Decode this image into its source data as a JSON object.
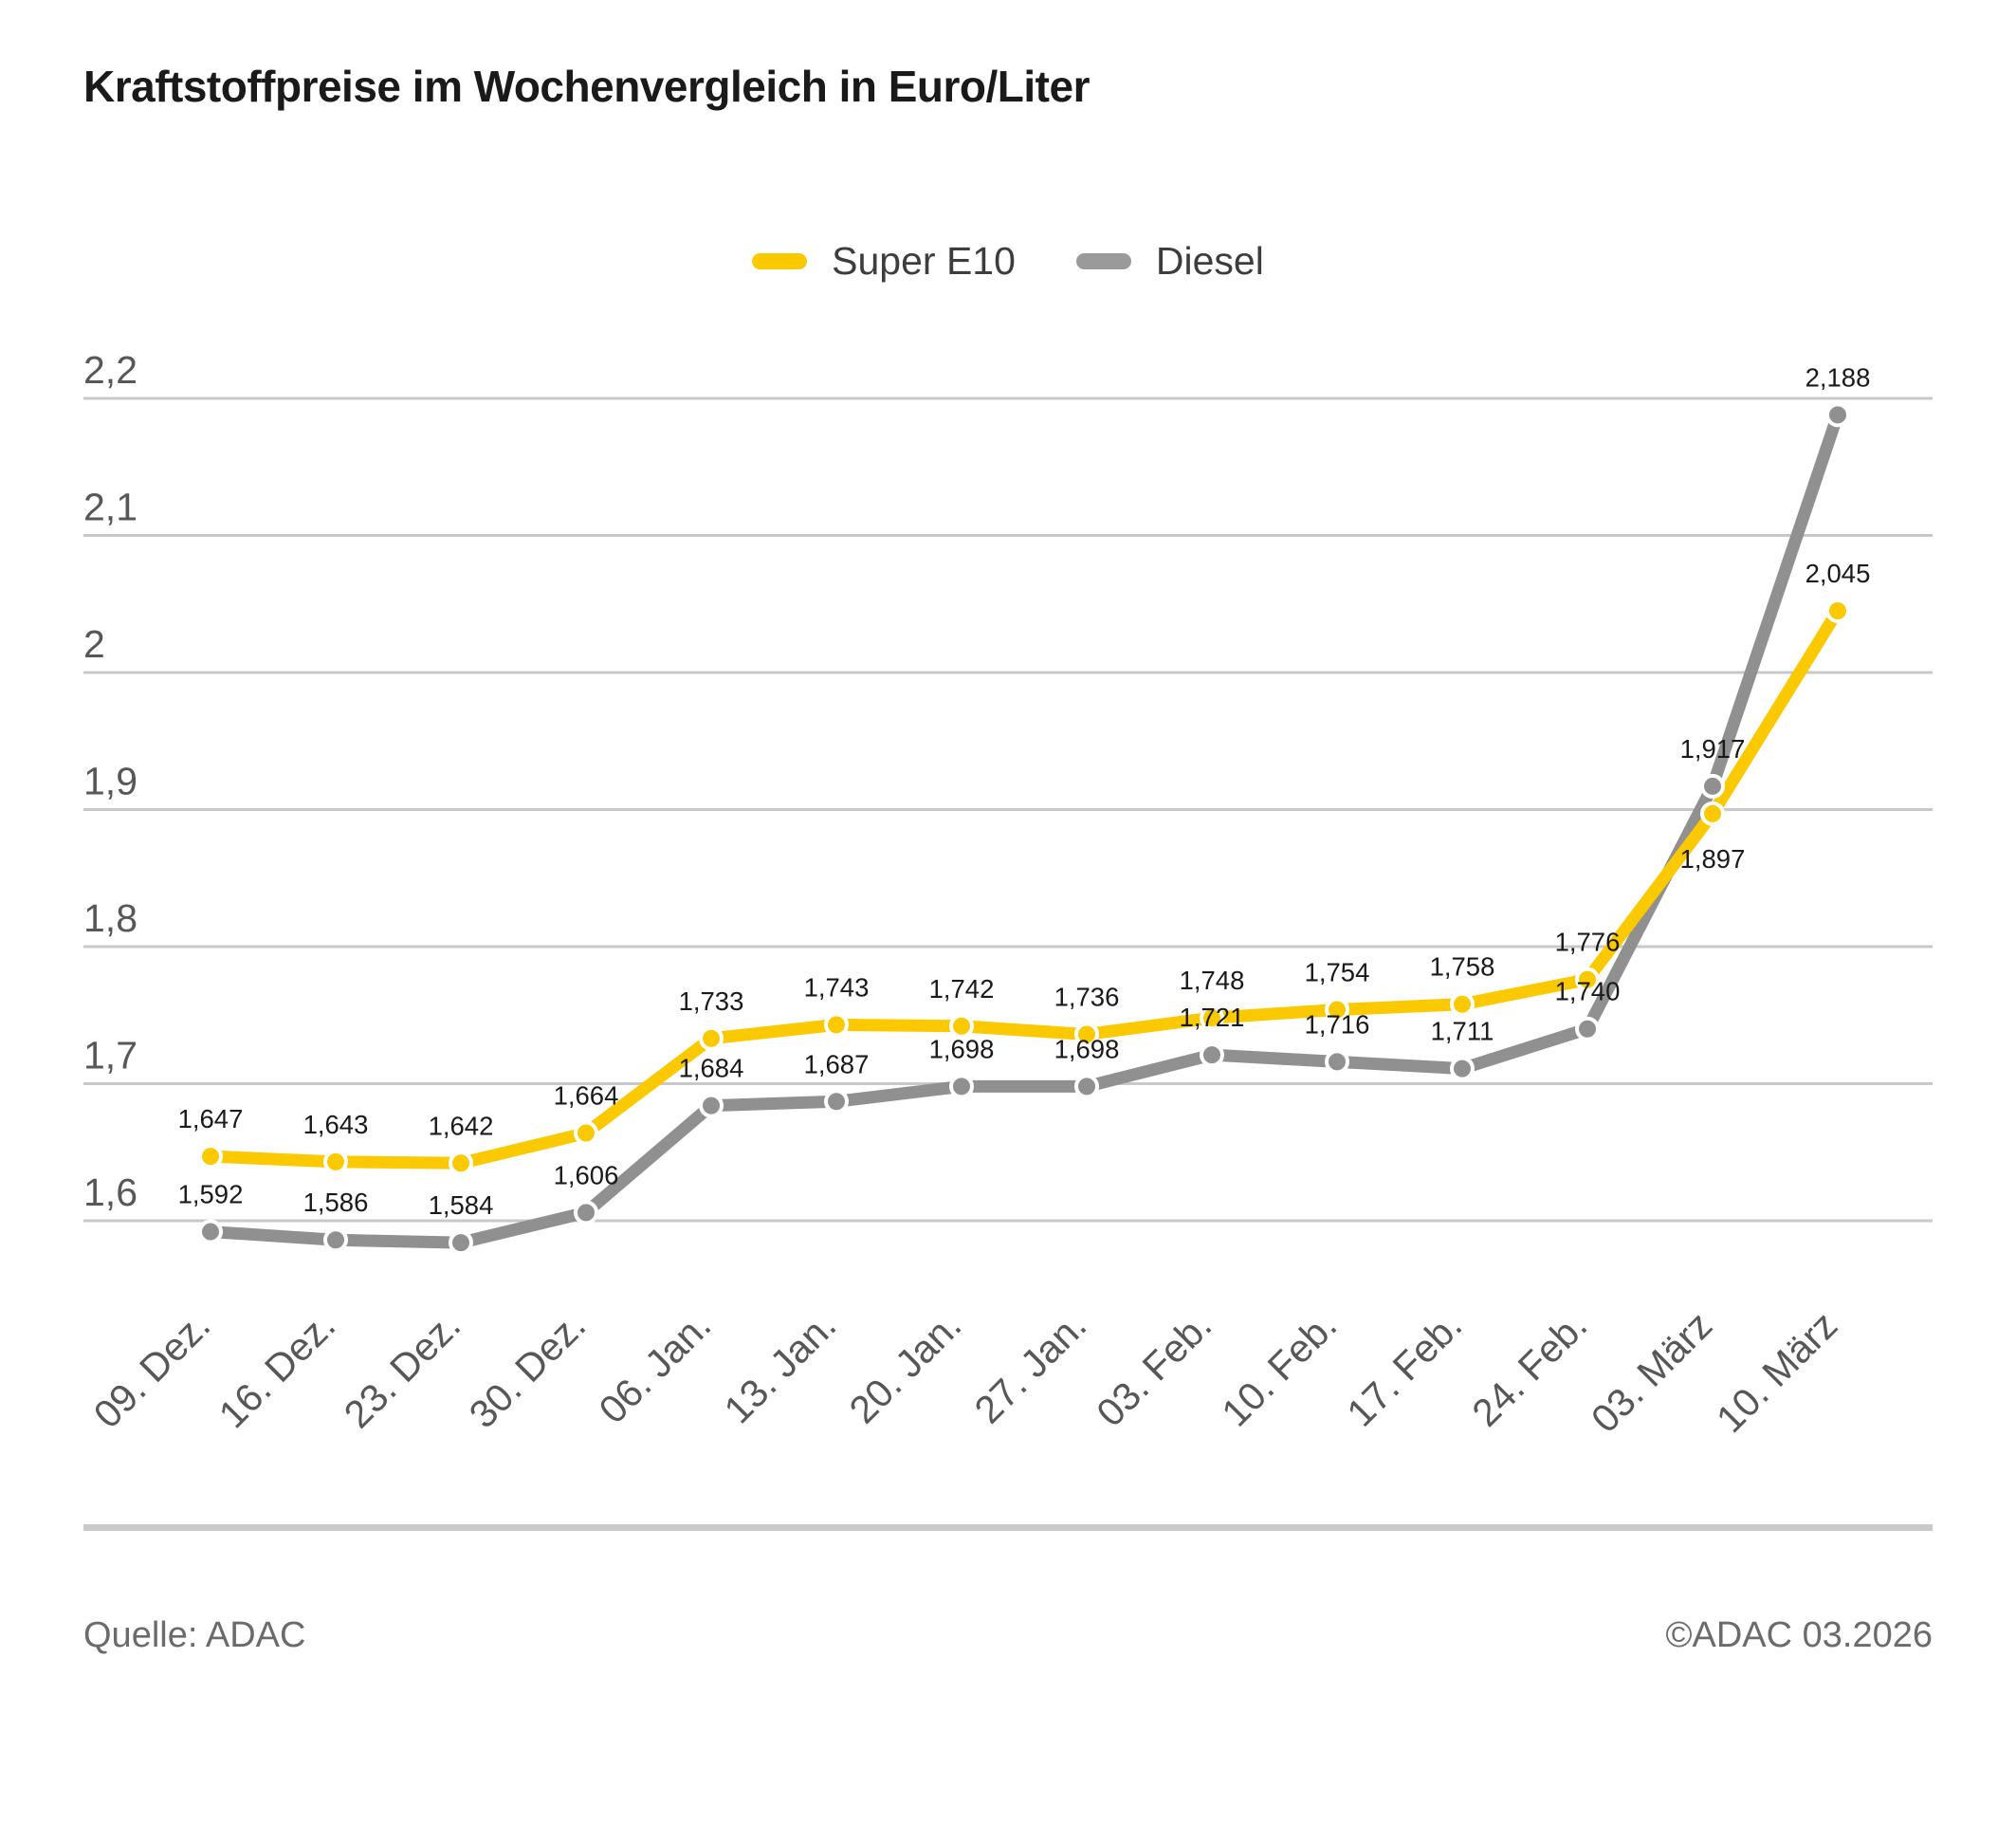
{
  "title": "Kraftstoffpreise im Wochenvergleich in Euro/Liter",
  "legend": [
    {
      "label": "Super E10",
      "color": "#fbc900"
    },
    {
      "label": "Diesel",
      "color": "#9a9a9a"
    }
  ],
  "colors": {
    "super_e10": "#fbc900",
    "diesel": "#909090",
    "gridline": "#c8c8c8",
    "axis_text": "#575757",
    "data_label": "#1a1a1a",
    "divider": "#c9c9c9",
    "footer_text": "#6b6b6b",
    "title_text": "#1a1a1a"
  },
  "chart_data": {
    "type": "line",
    "title": "Kraftstoffpreise im Wochenvergleich in Euro/Liter",
    "unit": "Euro/Liter",
    "xlabel": "",
    "ylabel": "",
    "grid": true,
    "legend_position": "top",
    "x_label_rotation": -45,
    "ylim": [
      1.55,
      2.25
    ],
    "categories": [
      "09. Dez.",
      "16. Dez.",
      "23. Dez.",
      "30. Dez.",
      "06. Jan.",
      "13. Jan.",
      "20. Jan.",
      "27. Jan.",
      "03. Feb.",
      "10. Feb.",
      "17. Feb.",
      "24. Feb.",
      "03. März",
      "10. März"
    ],
    "y_ticks": [
      {
        "value": 2.2,
        "label": "2,2"
      },
      {
        "value": 2.1,
        "label": "2,1"
      },
      {
        "value": 2.0,
        "label": "2"
      },
      {
        "value": 1.9,
        "label": "1,9"
      },
      {
        "value": 1.8,
        "label": "1,8"
      },
      {
        "value": 1.7,
        "label": "1,7"
      },
      {
        "value": 1.6,
        "label": "1,6"
      }
    ],
    "series": [
      {
        "name": "Super E10",
        "color": "#fbc900",
        "values": [
          1.647,
          1.643,
          1.642,
          1.664,
          1.733,
          1.743,
          1.742,
          1.736,
          1.748,
          1.754,
          1.758,
          1.776,
          1.897,
          2.045
        ]
      },
      {
        "name": "Diesel",
        "color": "#909090",
        "values": [
          1.592,
          1.586,
          1.584,
          1.606,
          1.684,
          1.687,
          1.698,
          1.698,
          1.721,
          1.716,
          1.711,
          1.74,
          1.917,
          2.188
        ]
      }
    ],
    "data_labels": true,
    "label_below": {
      "Super E10": [
        12
      ],
      "Diesel": []
    }
  },
  "footer": {
    "source": "Quelle: ADAC",
    "copyright": "©ADAC 03.2026"
  }
}
